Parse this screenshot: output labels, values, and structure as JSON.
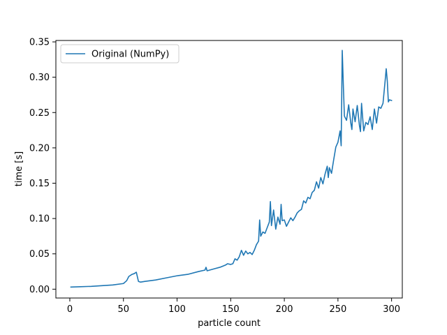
{
  "chart_data": {
    "type": "line",
    "title": "",
    "xlabel": "particle count",
    "ylabel": "time [s]",
    "xlim": [
      -13,
      310
    ],
    "ylim": [
      -0.0125,
      0.352
    ],
    "xticks": [
      0,
      50,
      100,
      150,
      200,
      250,
      300
    ],
    "xtick_labels": [
      "0",
      "50",
      "100",
      "150",
      "200",
      "250",
      "300"
    ],
    "yticks": [
      0.0,
      0.05,
      0.1,
      0.15,
      0.2,
      0.25,
      0.3,
      0.35
    ],
    "ytick_labels": [
      "0.00",
      "0.05",
      "0.10",
      "0.15",
      "0.20",
      "0.25",
      "0.30",
      "0.35"
    ],
    "grid": false,
    "legend_position": "upper-left",
    "series": [
      {
        "name": "Original (NumPy)",
        "color": "#1f77b4",
        "x": [
          1,
          10,
          20,
          30,
          40,
          50,
          53,
          55,
          58,
          60,
          62,
          64,
          66,
          70,
          80,
          90,
          100,
          110,
          120,
          126,
          127,
          128,
          135,
          140,
          145,
          147,
          150,
          152,
          154,
          156,
          158,
          160,
          162,
          164,
          166,
          168,
          170,
          172,
          174,
          176,
          177,
          178,
          180,
          182,
          184,
          186,
          187,
          188,
          190,
          192,
          194,
          196,
          197,
          198,
          200,
          202,
          204,
          206,
          208,
          210,
          212,
          214,
          216,
          218,
          220,
          222,
          224,
          226,
          228,
          230,
          232,
          234,
          236,
          238,
          240,
          241,
          242,
          244,
          246,
          248,
          250,
          252,
          253,
          254,
          255,
          256,
          258,
          260,
          262,
          263,
          264,
          266,
          268,
          270,
          271,
          272,
          274,
          276,
          278,
          280,
          282,
          284,
          286,
          288,
          290,
          292,
          294,
          295,
          296,
          297,
          298,
          300
        ],
        "y": [
          0.003,
          0.0035,
          0.004,
          0.005,
          0.006,
          0.008,
          0.012,
          0.018,
          0.021,
          0.022,
          0.024,
          0.011,
          0.01,
          0.011,
          0.013,
          0.016,
          0.019,
          0.021,
          0.025,
          0.027,
          0.031,
          0.026,
          0.029,
          0.031,
          0.034,
          0.036,
          0.035,
          0.036,
          0.043,
          0.041,
          0.046,
          0.055,
          0.048,
          0.054,
          0.05,
          0.052,
          0.049,
          0.055,
          0.063,
          0.068,
          0.098,
          0.075,
          0.081,
          0.079,
          0.087,
          0.095,
          0.124,
          0.09,
          0.112,
          0.085,
          0.102,
          0.092,
          0.12,
          0.097,
          0.098,
          0.089,
          0.095,
          0.101,
          0.097,
          0.102,
          0.108,
          0.111,
          0.113,
          0.125,
          0.122,
          0.13,
          0.128,
          0.137,
          0.14,
          0.152,
          0.143,
          0.158,
          0.149,
          0.163,
          0.174,
          0.158,
          0.172,
          0.164,
          0.183,
          0.201,
          0.208,
          0.224,
          0.203,
          0.338,
          0.29,
          0.245,
          0.239,
          0.261,
          0.235,
          0.226,
          0.255,
          0.237,
          0.26,
          0.232,
          0.223,
          0.263,
          0.224,
          0.236,
          0.233,
          0.244,
          0.226,
          0.255,
          0.235,
          0.258,
          0.256,
          0.263,
          0.295,
          0.312,
          0.295,
          0.265,
          0.268,
          0.267
        ]
      }
    ]
  }
}
